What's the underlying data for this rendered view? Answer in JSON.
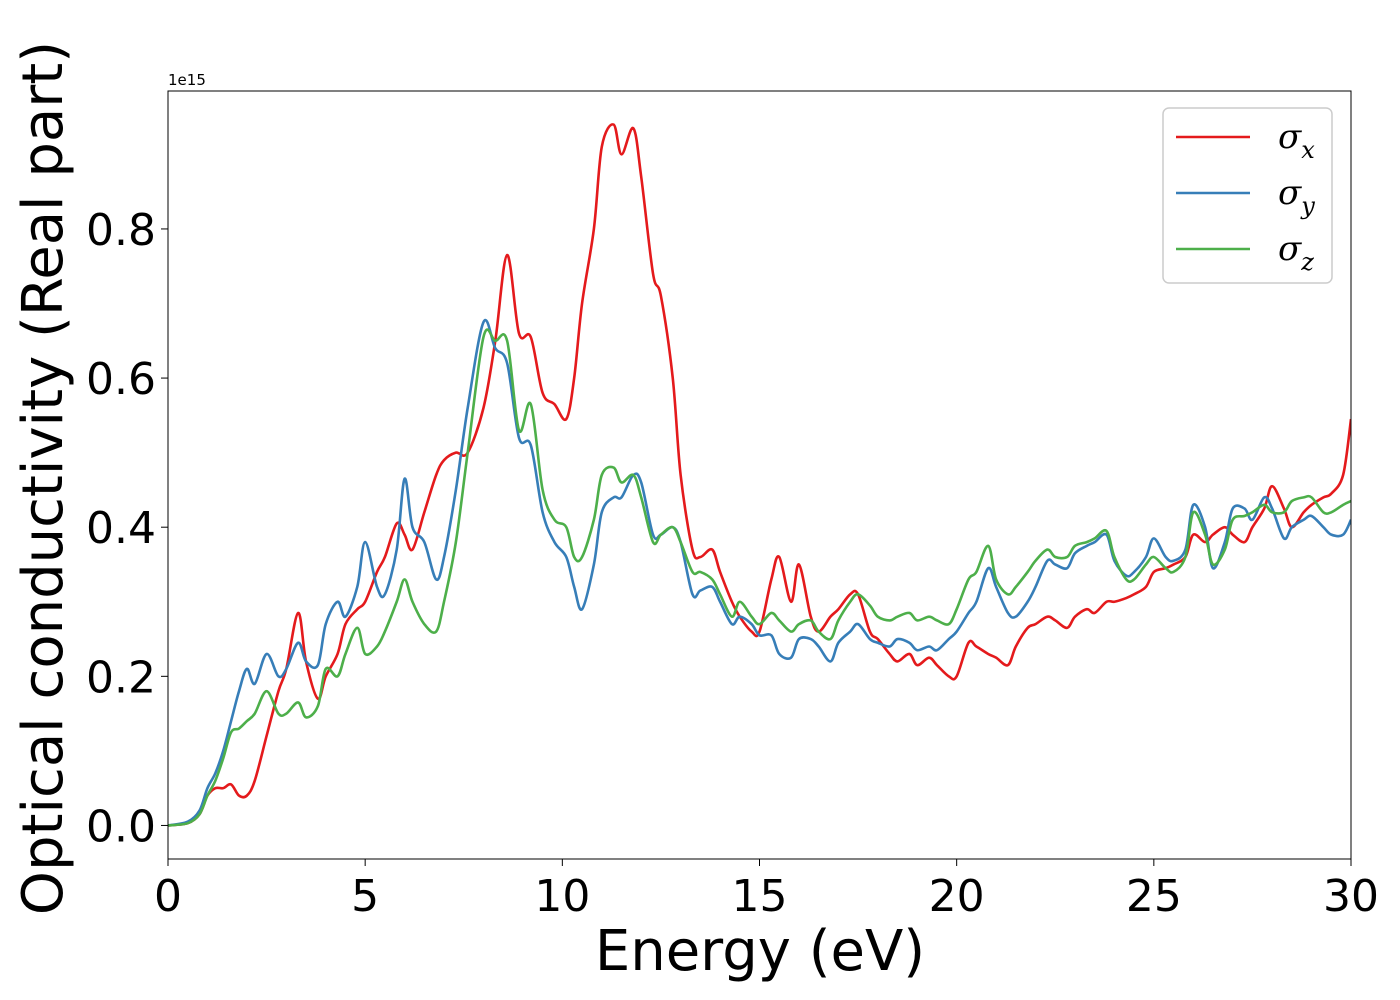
{
  "chart_data": {
    "type": "line",
    "xlabel": "Energy (eV)",
    "ylabel": "Optical conductivity (Real part)",
    "y_offset_label": "1e15",
    "xlim": [
      0,
      30
    ],
    "ylim": [
      -0.045,
      0.985
    ],
    "x_ticks": [
      "0",
      "5",
      "10",
      "15",
      "20",
      "25",
      "30"
    ],
    "y_ticks": [
      "0.0",
      "0.2",
      "0.4",
      "0.6",
      "0.8"
    ],
    "grid": false,
    "legend_position": "top-right",
    "series": [
      {
        "name": "σx",
        "legend_base": "σ",
        "legend_sub": "x",
        "color": "#e41a1c",
        "x": [
          0,
          0.5,
          0.8,
          1.0,
          1.2,
          1.4,
          1.6,
          1.8,
          2.0,
          2.2,
          2.5,
          2.8,
          3.0,
          3.3,
          3.5,
          3.8,
          4.0,
          4.3,
          4.5,
          4.8,
          5.0,
          5.3,
          5.5,
          5.8,
          6.0,
          6.2,
          6.5,
          6.8,
          7.0,
          7.3,
          7.6,
          8.0,
          8.3,
          8.6,
          8.9,
          9.2,
          9.5,
          9.8,
          10.1,
          10.3,
          10.5,
          10.8,
          11.0,
          11.3,
          11.5,
          11.8,
          12.0,
          12.3,
          12.5,
          12.8,
          13.0,
          13.3,
          13.5,
          13.8,
          14.0,
          14.3,
          14.5,
          14.8,
          15.0,
          15.3,
          15.5,
          15.8,
          16.0,
          16.3,
          16.5,
          16.8,
          17.0,
          17.3,
          17.5,
          17.8,
          18.0,
          18.3,
          18.5,
          18.8,
          19.0,
          19.3,
          19.5,
          19.8,
          20.0,
          20.3,
          20.5,
          20.8,
          21.0,
          21.3,
          21.5,
          21.8,
          22.0,
          22.3,
          22.5,
          22.8,
          23.0,
          23.3,
          23.5,
          23.8,
          24.0,
          24.3,
          24.5,
          24.8,
          25.0,
          25.3,
          25.5,
          25.8,
          26.0,
          26.3,
          26.5,
          26.8,
          27.0,
          27.3,
          27.5,
          27.8,
          28.0,
          28.3,
          28.5,
          28.8,
          29.0,
          29.3,
          29.5,
          29.8,
          30.0
        ],
        "values": [
          0.0,
          0.003,
          0.015,
          0.04,
          0.05,
          0.05,
          0.055,
          0.04,
          0.04,
          0.06,
          0.12,
          0.18,
          0.21,
          0.285,
          0.22,
          0.17,
          0.2,
          0.23,
          0.27,
          0.29,
          0.3,
          0.34,
          0.36,
          0.405,
          0.39,
          0.37,
          0.42,
          0.47,
          0.49,
          0.5,
          0.5,
          0.56,
          0.65,
          0.765,
          0.66,
          0.655,
          0.58,
          0.565,
          0.545,
          0.6,
          0.7,
          0.8,
          0.91,
          0.94,
          0.9,
          0.935,
          0.87,
          0.74,
          0.71,
          0.6,
          0.47,
          0.37,
          0.36,
          0.37,
          0.34,
          0.3,
          0.28,
          0.26,
          0.26,
          0.33,
          0.36,
          0.3,
          0.35,
          0.28,
          0.26,
          0.28,
          0.29,
          0.31,
          0.31,
          0.26,
          0.25,
          0.23,
          0.22,
          0.23,
          0.215,
          0.225,
          0.215,
          0.2,
          0.2,
          0.245,
          0.24,
          0.23,
          0.225,
          0.215,
          0.24,
          0.265,
          0.27,
          0.28,
          0.275,
          0.265,
          0.28,
          0.29,
          0.285,
          0.3,
          0.3,
          0.305,
          0.31,
          0.32,
          0.34,
          0.345,
          0.35,
          0.36,
          0.39,
          0.38,
          0.39,
          0.4,
          0.39,
          0.38,
          0.4,
          0.425,
          0.455,
          0.425,
          0.4,
          0.42,
          0.43,
          0.44,
          0.445,
          0.47,
          0.545
        ]
      },
      {
        "name": "σy",
        "legend_base": "σ",
        "legend_sub": "y",
        "color": "#377eb8",
        "x": [
          0,
          0.5,
          0.8,
          1.0,
          1.2,
          1.4,
          1.6,
          1.8,
          2.0,
          2.2,
          2.5,
          2.8,
          3.0,
          3.3,
          3.5,
          3.8,
          4.0,
          4.3,
          4.5,
          4.8,
          5.0,
          5.3,
          5.5,
          5.8,
          6.0,
          6.2,
          6.5,
          6.8,
          7.0,
          7.3,
          7.6,
          8.0,
          8.3,
          8.6,
          8.9,
          9.2,
          9.5,
          9.8,
          10.1,
          10.3,
          10.5,
          10.8,
          11.0,
          11.3,
          11.5,
          11.8,
          12.0,
          12.3,
          12.5,
          12.8,
          13.0,
          13.3,
          13.5,
          13.8,
          14.0,
          14.3,
          14.5,
          14.8,
          15.0,
          15.3,
          15.5,
          15.8,
          16.0,
          16.3,
          16.5,
          16.8,
          17.0,
          17.3,
          17.5,
          17.8,
          18.0,
          18.3,
          18.5,
          18.8,
          19.0,
          19.3,
          19.5,
          19.8,
          20.0,
          20.3,
          20.5,
          20.8,
          21.0,
          21.3,
          21.5,
          21.8,
          22.0,
          22.3,
          22.5,
          22.8,
          23.0,
          23.3,
          23.5,
          23.8,
          24.0,
          24.3,
          24.5,
          24.8,
          25.0,
          25.3,
          25.5,
          25.8,
          26.0,
          26.3,
          26.5,
          26.8,
          27.0,
          27.3,
          27.5,
          27.8,
          28.0,
          28.3,
          28.5,
          28.8,
          29.0,
          29.3,
          29.5,
          29.8,
          30.0
        ],
        "values": [
          0.0,
          0.005,
          0.02,
          0.05,
          0.07,
          0.1,
          0.14,
          0.18,
          0.21,
          0.19,
          0.23,
          0.2,
          0.21,
          0.245,
          0.22,
          0.215,
          0.27,
          0.3,
          0.28,
          0.32,
          0.38,
          0.32,
          0.31,
          0.37,
          0.465,
          0.4,
          0.38,
          0.33,
          0.36,
          0.45,
          0.56,
          0.675,
          0.64,
          0.62,
          0.52,
          0.51,
          0.42,
          0.38,
          0.36,
          0.32,
          0.29,
          0.35,
          0.42,
          0.44,
          0.44,
          0.47,
          0.46,
          0.39,
          0.39,
          0.4,
          0.38,
          0.31,
          0.315,
          0.32,
          0.3,
          0.27,
          0.28,
          0.27,
          0.255,
          0.255,
          0.23,
          0.225,
          0.25,
          0.25,
          0.24,
          0.22,
          0.245,
          0.26,
          0.27,
          0.25,
          0.245,
          0.24,
          0.25,
          0.245,
          0.235,
          0.24,
          0.235,
          0.25,
          0.26,
          0.285,
          0.3,
          0.345,
          0.32,
          0.285,
          0.28,
          0.3,
          0.32,
          0.355,
          0.35,
          0.345,
          0.365,
          0.375,
          0.38,
          0.39,
          0.355,
          0.335,
          0.34,
          0.36,
          0.385,
          0.36,
          0.355,
          0.37,
          0.43,
          0.4,
          0.345,
          0.38,
          0.425,
          0.425,
          0.41,
          0.44,
          0.425,
          0.385,
          0.4,
          0.41,
          0.415,
          0.4,
          0.39,
          0.39,
          0.41
        ]
      },
      {
        "name": "σz",
        "legend_base": "σ",
        "legend_sub": "z",
        "color": "#4daf4a",
        "x": [
          0,
          0.5,
          0.8,
          1.0,
          1.2,
          1.4,
          1.6,
          1.8,
          2.0,
          2.2,
          2.5,
          2.8,
          3.0,
          3.3,
          3.5,
          3.8,
          4.0,
          4.3,
          4.5,
          4.8,
          5.0,
          5.3,
          5.5,
          5.8,
          6.0,
          6.2,
          6.5,
          6.8,
          7.0,
          7.3,
          7.6,
          8.0,
          8.3,
          8.6,
          8.9,
          9.2,
          9.5,
          9.8,
          10.1,
          10.3,
          10.5,
          10.8,
          11.0,
          11.3,
          11.5,
          11.8,
          12.0,
          12.3,
          12.5,
          12.8,
          13.0,
          13.3,
          13.5,
          13.8,
          14.0,
          14.3,
          14.5,
          14.8,
          15.0,
          15.3,
          15.5,
          15.8,
          16.0,
          16.3,
          16.5,
          16.8,
          17.0,
          17.3,
          17.5,
          17.8,
          18.0,
          18.3,
          18.5,
          18.8,
          19.0,
          19.3,
          19.5,
          19.8,
          20.0,
          20.3,
          20.5,
          20.8,
          21.0,
          21.3,
          21.5,
          21.8,
          22.0,
          22.3,
          22.5,
          22.8,
          23.0,
          23.3,
          23.5,
          23.8,
          24.0,
          24.3,
          24.5,
          24.8,
          25.0,
          25.3,
          25.5,
          25.8,
          26.0,
          26.3,
          26.5,
          26.8,
          27.0,
          27.3,
          27.5,
          27.8,
          28.0,
          28.3,
          28.5,
          28.8,
          29.0,
          29.3,
          29.5,
          29.8,
          30.0
        ],
        "values": [
          0.0,
          0.003,
          0.015,
          0.04,
          0.06,
          0.09,
          0.125,
          0.13,
          0.14,
          0.15,
          0.18,
          0.15,
          0.15,
          0.165,
          0.145,
          0.16,
          0.21,
          0.2,
          0.23,
          0.265,
          0.23,
          0.24,
          0.26,
          0.3,
          0.33,
          0.3,
          0.27,
          0.26,
          0.3,
          0.38,
          0.5,
          0.655,
          0.65,
          0.65,
          0.53,
          0.565,
          0.45,
          0.41,
          0.4,
          0.36,
          0.36,
          0.41,
          0.47,
          0.48,
          0.46,
          0.47,
          0.44,
          0.38,
          0.39,
          0.4,
          0.38,
          0.34,
          0.34,
          0.33,
          0.31,
          0.28,
          0.3,
          0.28,
          0.27,
          0.285,
          0.275,
          0.26,
          0.27,
          0.275,
          0.26,
          0.25,
          0.275,
          0.3,
          0.31,
          0.295,
          0.28,
          0.275,
          0.28,
          0.285,
          0.275,
          0.28,
          0.275,
          0.27,
          0.29,
          0.33,
          0.34,
          0.375,
          0.33,
          0.31,
          0.32,
          0.34,
          0.355,
          0.37,
          0.36,
          0.36,
          0.375,
          0.38,
          0.385,
          0.395,
          0.36,
          0.33,
          0.33,
          0.35,
          0.36,
          0.345,
          0.34,
          0.36,
          0.42,
          0.39,
          0.35,
          0.37,
          0.41,
          0.415,
          0.42,
          0.43,
          0.42,
          0.42,
          0.435,
          0.44,
          0.44,
          0.42,
          0.42,
          0.43,
          0.435
        ]
      }
    ]
  }
}
